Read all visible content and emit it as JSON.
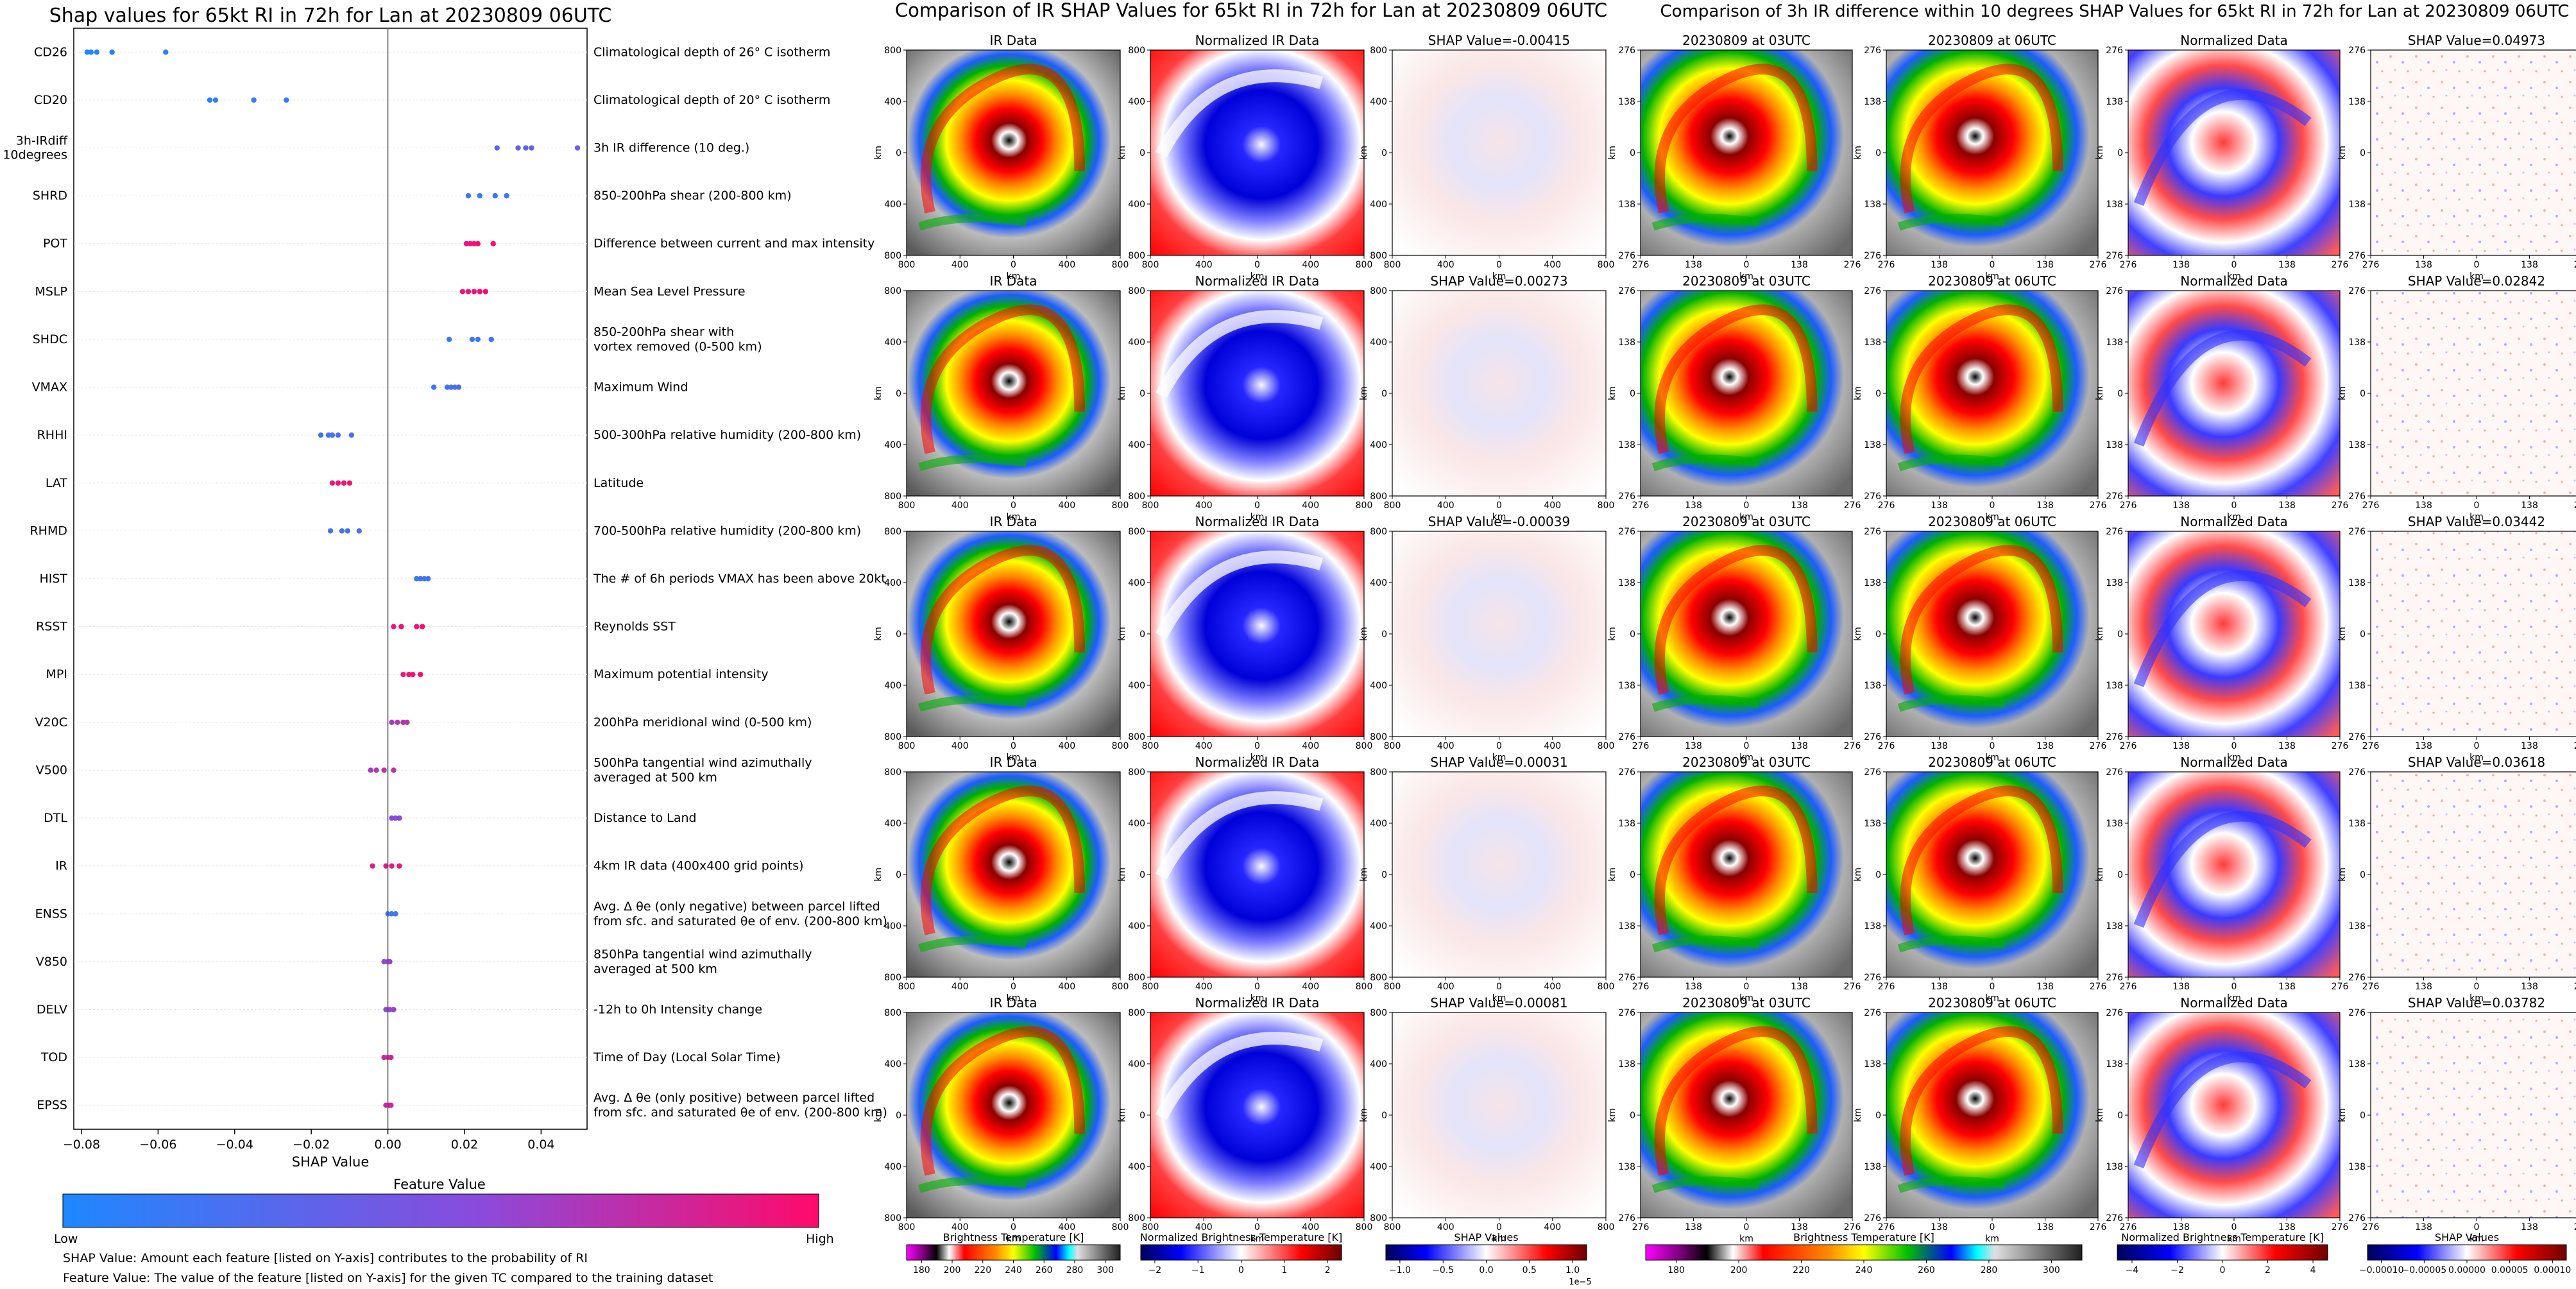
{
  "left_panel": {
    "title": "Shap values for 65kt RI in 72h for Lan at 20230809 06UTC",
    "xlabel": "SHAP Value",
    "colorbar_title": "Feature Value",
    "colorbar_low": "Low",
    "colorbar_high": "High",
    "footnote_1": "SHAP Value: Amount each feature [listed on Y-axis] contributes to the probability of RI",
    "footnote_2": "Feature Value: The value of the feature [listed on Y-axis] for the given TC compared to the training dataset"
  },
  "middle_panel": {
    "title": "Comparison of IR SHAP Values for 65kt RI in 72h for Lan at 20230809 06UTC",
    "col_titles": [
      "IR Data",
      "Normalized IR Data"
    ],
    "shap_titles": [
      "SHAP Value=-0.00415",
      "SHAP Value=0.00273",
      "SHAP Value=-0.00039",
      "SHAP Value=0.00031",
      "SHAP Value=0.00081"
    ],
    "ticks": [
      "800",
      "400",
      "0",
      "400",
      "800"
    ],
    "axis_unit": "km",
    "colorbars": [
      {
        "label": "Brightness Temperature [K]",
        "ticks": [
          "180",
          "200",
          "220",
          "240",
          "260",
          "280",
          "300"
        ]
      },
      {
        "label": "Normalized Brightness Temperature [K]",
        "ticks": [
          "−2",
          "−1",
          "0",
          "1",
          "2"
        ]
      },
      {
        "label": "SHAP Values",
        "ticks": [
          "−1.0",
          "−0.5",
          "0.0",
          "0.5",
          "1.0"
        ],
        "offset": "1e−5"
      }
    ]
  },
  "right_panel": {
    "title": "Comparison of 3h IR difference within 10 degrees SHAP Values for 65kt RI in 72h for Lan at 20230809 06UTC",
    "col_titles": [
      "20230809 at 03UTC",
      "20230809 at 06UTC",
      "Normalized Data"
    ],
    "shap_titles": [
      "SHAP Value=0.04973",
      "SHAP Value=0.02842",
      "SHAP Value=0.03442",
      "SHAP Value=0.03618",
      "SHAP Value=0.03782"
    ],
    "ticks": [
      "276",
      "138",
      "0",
      "138",
      "276"
    ],
    "axis_unit": "km",
    "colorbars": [
      {
        "label": "Brightness Temperature [K]",
        "ticks": [
          "180",
          "200",
          "220",
          "240",
          "260",
          "280",
          "300"
        ]
      },
      {
        "label": "Normalized Brightness Temperature [K]",
        "ticks": [
          "−4",
          "−2",
          "0",
          "2",
          "4"
        ]
      },
      {
        "label": "SHAP Values",
        "ticks": [
          "−0.00010",
          "−0.00005",
          "0.00000",
          "0.00005",
          "0.00010"
        ]
      }
    ]
  },
  "colors": {
    "feature_low": "#1e88ff",
    "feature_high": "#ff0a6a"
  },
  "chart_data": {
    "type": "scatter",
    "title": "Shap values for 65kt RI in 72h for Lan at 20230809 06UTC",
    "xlabel": "SHAP Value",
    "xlim": [
      -0.082,
      0.052
    ],
    "xticks": [
      "−0.08",
      "−0.06",
      "−0.04",
      "−0.02",
      "0.00",
      "0.02",
      "0.04"
    ],
    "xtick_values": [
      -0.08,
      -0.06,
      -0.04,
      -0.02,
      0.0,
      0.02,
      0.04
    ],
    "features": [
      {
        "name": "CD26",
        "desc": "Climatological depth of 26° C isotherm",
        "values": [
          -0.0785,
          -0.0775,
          -0.076,
          -0.072,
          -0.058
        ],
        "fv": 0.05
      },
      {
        "name": "CD20",
        "desc": "Climatological depth of 20° C isotherm",
        "values": [
          -0.0465,
          -0.045,
          -0.035,
          -0.0265
        ],
        "fv": 0.1
      },
      {
        "name": "3h-IRdiff\n10degrees",
        "desc": "3h IR difference (10 deg.)",
        "values": [
          0.0285,
          0.034,
          0.036,
          0.0375,
          0.0495
        ],
        "fv": 0.35
      },
      {
        "name": "SHRD",
        "desc": "850-200hPa shear (200-800 km)",
        "values": [
          0.021,
          0.024,
          0.028,
          0.031
        ],
        "fv": 0.15
      },
      {
        "name": "POT",
        "desc": "Difference between current and max intensity",
        "values": [
          0.0205,
          0.0215,
          0.0225,
          0.0235,
          0.0275
        ],
        "fv": 0.95
      },
      {
        "name": "MSLP",
        "desc": "Mean Sea Level Pressure",
        "values": [
          0.0195,
          0.021,
          0.0225,
          0.024,
          0.0255
        ],
        "fv": 0.95
      },
      {
        "name": "SHDC",
        "desc": "850-200hPa shear with\nvortex removed (0-500 km)",
        "values": [
          0.016,
          0.022,
          0.0235,
          0.027
        ],
        "fv": 0.15
      },
      {
        "name": "VMAX",
        "desc": "Maximum Wind",
        "values": [
          0.012,
          0.0155,
          0.0165,
          0.0175,
          0.0185
        ],
        "fv": 0.2
      },
      {
        "name": "RHHI",
        "desc": "500-300hPa relative humidity (200-800 km)",
        "values": [
          -0.0175,
          -0.0155,
          -0.0145,
          -0.013,
          -0.0095
        ],
        "fv": 0.2
      },
      {
        "name": "LAT",
        "desc": "Latitude",
        "values": [
          -0.0145,
          -0.013,
          -0.0115,
          -0.01
        ],
        "fv": 0.95
      },
      {
        "name": "RHMD",
        "desc": "700-500hPa relative humidity (200-800 km)",
        "values": [
          -0.015,
          -0.012,
          -0.0105,
          -0.0075
        ],
        "fv": 0.2
      },
      {
        "name": "HIST",
        "desc": "The # of 6h periods VMAX has been above 20kt",
        "values": [
          0.0075,
          0.0085,
          0.0095,
          0.0105
        ],
        "fv": 0.15
      },
      {
        "name": "RSST",
        "desc": "Reynolds SST",
        "values": [
          0.0015,
          0.0035,
          0.0075,
          0.009
        ],
        "fv": 0.95
      },
      {
        "name": "MPI",
        "desc": "Maximum potential intensity",
        "values": [
          0.004,
          0.0055,
          0.0065,
          0.0085
        ],
        "fv": 0.95
      },
      {
        "name": "V20C",
        "desc": "200hPa meridional wind (0-500 km)",
        "values": [
          0.001,
          0.0025,
          0.004,
          0.005
        ],
        "fv": 0.7
      },
      {
        "name": "V500",
        "desc": "500hPa tangential wind azimuthally\naveraged at 500 km",
        "values": [
          -0.0045,
          -0.003,
          -0.001,
          0.0015
        ],
        "fv": 0.7
      },
      {
        "name": "DTL",
        "desc": "Distance to Land",
        "values": [
          0.001,
          0.002,
          0.003
        ],
        "fv": 0.55
      },
      {
        "name": "IR",
        "desc": "4km IR data (400x400 grid points)",
        "values": [
          -0.004,
          -0.0005,
          0.001,
          0.003
        ],
        "fv": 0.9
      },
      {
        "name": "ENSS",
        "desc": "Avg. Δ θe (only negative) between parcel lifted\nfrom sfc. and saturated θe of env. (200-800 km)",
        "values": [
          0.0,
          0.001,
          0.002
        ],
        "fv": 0.15
      },
      {
        "name": "V850",
        "desc": "850hPa tangential wind azimuthally\naveraged at 500 km",
        "values": [
          -0.001,
          0.0,
          0.0005
        ],
        "fv": 0.6
      },
      {
        "name": "DELV",
        "desc": "-12h to 0h Intensity change",
        "values": [
          -0.0005,
          0.0005,
          0.0015
        ],
        "fv": 0.6
      },
      {
        "name": "TOD",
        "desc": "Time of Day (Local Solar Time)",
        "values": [
          -0.001,
          0.0,
          0.0008
        ],
        "fv": 0.8
      },
      {
        "name": "EPSS",
        "desc": "Avg. Δ θe (only positive) between parcel lifted\nfrom sfc. and saturated θe of env. (200-800 km)",
        "values": [
          -0.0005,
          0.0003,
          0.0008
        ],
        "fv": 0.8
      }
    ]
  }
}
